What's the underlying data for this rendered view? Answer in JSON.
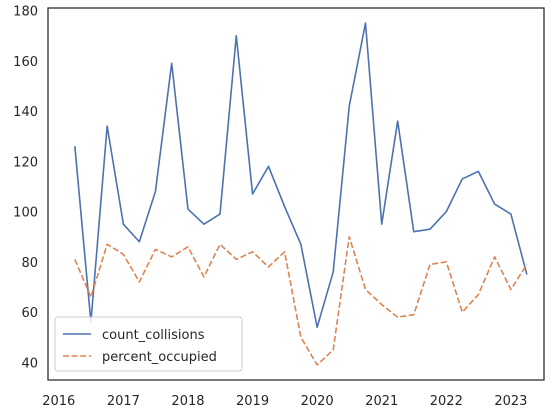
{
  "chart_data": {
    "type": "line",
    "title": "",
    "xlabel": "",
    "ylabel": "",
    "x_ticks": [
      "2016",
      "2017",
      "2018",
      "2019",
      "2020",
      "2021",
      "2022",
      "2023"
    ],
    "y_ticks": [
      "40",
      "60",
      "80",
      "100",
      "120",
      "140",
      "160",
      "180"
    ],
    "xlim": [
      "2015-11-01",
      "2023-07-07"
    ],
    "ylim": [
      33,
      181
    ],
    "grid": false,
    "legend_position": "lower-left",
    "x": [
      "2016-04-01",
      "2016-07-01",
      "2016-10-01",
      "2017-01-01",
      "2017-04-01",
      "2017-07-01",
      "2017-10-01",
      "2018-01-01",
      "2018-04-01",
      "2018-07-01",
      "2018-10-01",
      "2019-01-01",
      "2019-04-01",
      "2019-07-01",
      "2019-10-01",
      "2020-01-01",
      "2020-04-01",
      "2020-07-01",
      "2020-10-01",
      "2021-01-01",
      "2021-04-01",
      "2021-07-01",
      "2021-10-01",
      "2022-01-01",
      "2022-04-01",
      "2022-07-01",
      "2022-10-01",
      "2023-01-01",
      "2023-04-01"
    ],
    "series": [
      {
        "name": "count_collisions",
        "color": "#4c72b0",
        "style": "solid",
        "values": [
          126,
          56,
          134,
          95,
          88,
          108,
          159,
          101,
          95,
          99,
          170,
          107,
          118,
          102,
          87,
          54,
          76,
          142,
          175,
          95,
          136,
          92,
          93,
          100,
          113,
          116,
          103,
          99,
          75
        ]
      },
      {
        "name": "percent_occupied",
        "color": "#dd8452",
        "style": "dashed",
        "values": [
          81,
          66,
          87,
          83,
          72,
          85,
          82,
          86,
          74,
          87,
          81,
          84,
          78,
          84,
          50,
          39,
          45,
          90,
          69,
          63,
          58,
          59,
          79,
          80,
          60,
          67,
          82,
          69,
          79
        ]
      }
    ]
  }
}
